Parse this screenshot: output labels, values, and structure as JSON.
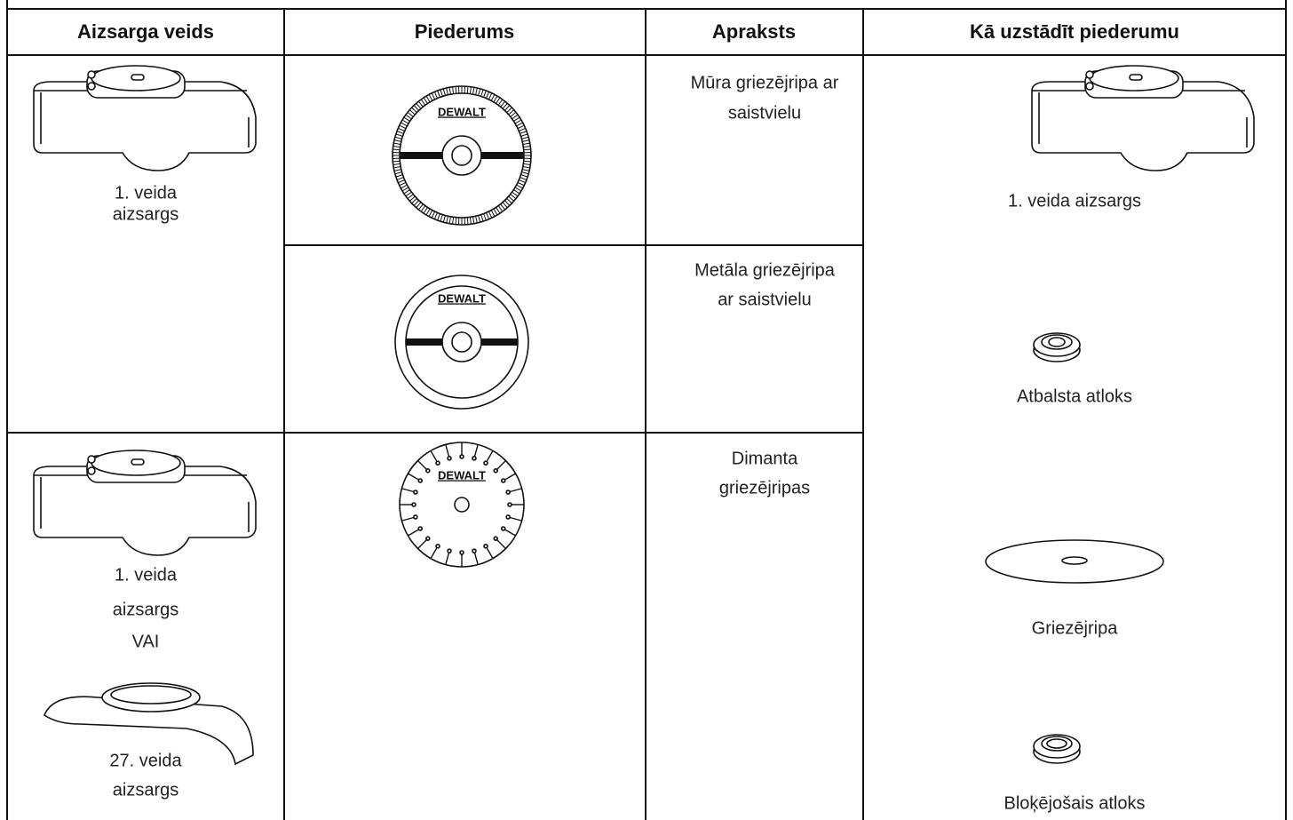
{
  "header": [
    "Aizsarga veids",
    "Piederums",
    "Apraksts",
    "Kā uzstādīt piederumu"
  ],
  "rows": [
    {
      "guard": [
        "1. veida",
        "aizsargs"
      ],
      "accessories": [
        {
          "logo": "DEWALT",
          "description": [
            "Mūra griezējripa ar",
            "saistvielu"
          ]
        },
        {
          "logo": "DEWALT",
          "description": [
            "Metāla griezējripa",
            "ar saistvielu"
          ]
        }
      ]
    },
    {
      "guard": [
        "1. veida",
        "aizsargs",
        "VAI",
        "27. veida",
        "aizsargs"
      ],
      "accessories": [
        {
          "logo": "DEWALT",
          "description": [
            "Dimanta",
            "griezējripas"
          ]
        }
      ]
    }
  ],
  "mounting": [
    "1. veida aizsargs",
    "Atbalsta atloks",
    "Griezējripa",
    "Bloķējošais atloks"
  ]
}
